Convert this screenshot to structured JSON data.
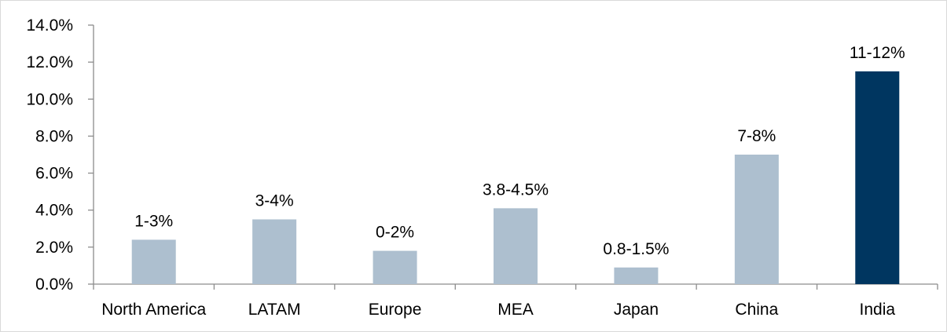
{
  "chart_data": {
    "type": "bar",
    "categories": [
      "North America",
      "LATAM",
      "Europe",
      "MEA",
      "Japan",
      "China",
      "India"
    ],
    "values": [
      2.4,
      3.5,
      1.8,
      4.1,
      0.9,
      7.0,
      11.5
    ],
    "data_labels": [
      "1-3%",
      "3-4%",
      "0-2%",
      "3.8-4.5%",
      "0.8-1.5%",
      "7-8%",
      "11-12%"
    ],
    "highlight_index": 6,
    "y_ticks": [
      "0.0%",
      "2.0%",
      "4.0%",
      "6.0%",
      "8.0%",
      "10.0%",
      "12.0%",
      "14.0%"
    ],
    "ylim": [
      0,
      14
    ],
    "grid": false,
    "legend": "none",
    "colors": {
      "bar": "#adbfcf",
      "highlight": "#003660",
      "axis": "#8c8c8c"
    }
  }
}
